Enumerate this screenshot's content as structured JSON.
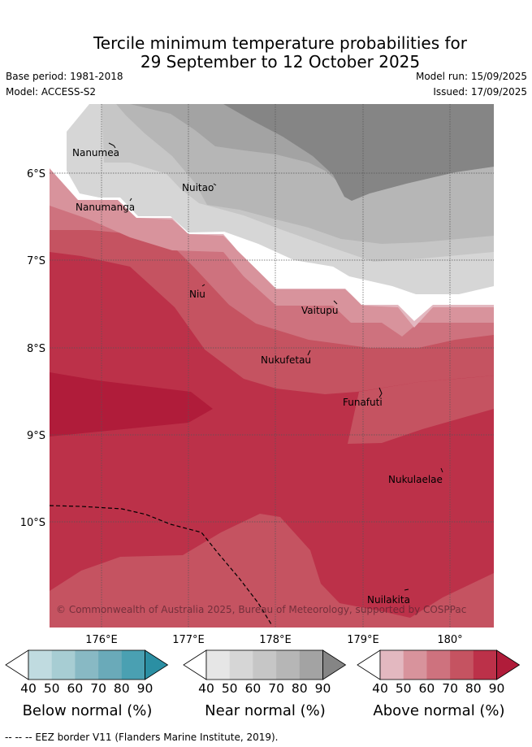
{
  "title_line1": "Tercile minimum temperature probabilities for",
  "title_line2": "29 September to 12 October 2025",
  "base_period": "Base period: 1981-2018",
  "model": "Model: ACCESS-S2",
  "model_run": "Model run: 15/09/2025",
  "issued": "Issued: 17/09/2025",
  "map": {
    "lat_labels": [
      "6°S",
      "7°S",
      "8°S",
      "9°S",
      "10°S"
    ],
    "lon_labels": [
      "176°E",
      "177°E",
      "178°E",
      "179°E",
      "180°"
    ],
    "islands": [
      "Nanumea",
      "Nuitao",
      "Nanumanga",
      "Niu",
      "Vaitupu",
      "Nukufetau",
      "Funafuti",
      "Nukulaelae",
      "Nuilakita"
    ],
    "copyright": "© Commonwealth of Australia 2025, Bureau of Meteorology, supported by COSPPac"
  },
  "colorbars": [
    {
      "label": "Below normal (%)",
      "ticks": [
        "40",
        "50",
        "60",
        "70",
        "80",
        "90"
      ],
      "colors": [
        "#ffffff",
        "#c0dbe0",
        "#a7cdd3",
        "#88b9c4",
        "#6aaab9",
        "#4aa0b2",
        "#2b8fa3"
      ]
    },
    {
      "label": "Near normal (%)",
      "ticks": [
        "40",
        "50",
        "60",
        "70",
        "80",
        "90"
      ],
      "colors": [
        "#ffffff",
        "#e6e6e6",
        "#d6d6d6",
        "#c6c6c6",
        "#b6b6b6",
        "#a3a3a3",
        "#858585"
      ]
    },
    {
      "label": "Above normal (%)",
      "ticks": [
        "40",
        "50",
        "60",
        "70",
        "80",
        "90"
      ],
      "colors": [
        "#ffffff",
        "#e3b8c0",
        "#d8939c",
        "#ce727e",
        "#c55361",
        "#bc3149",
        "#b01c3a"
      ]
    }
  ],
  "eez_legend": "--  --  -- EEZ border V11 (Flanders Marine Institute, 2019)."
}
